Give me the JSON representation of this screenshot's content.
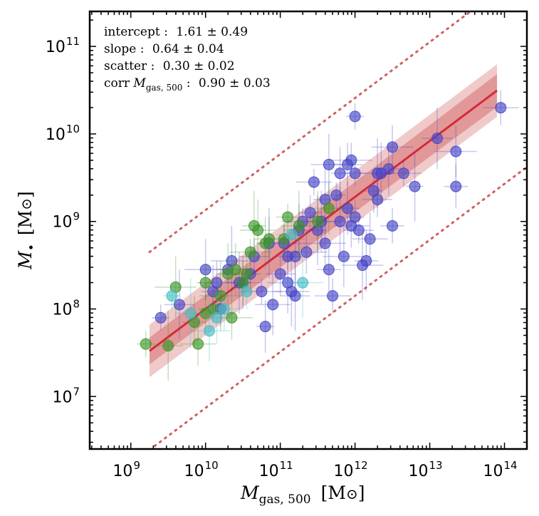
{
  "chart_data": {
    "type": "scatter",
    "log_axes": true,
    "xlim_exp": [
      8.45,
      14.3
    ],
    "ylim_exp": [
      6.4,
      11.4
    ],
    "xtick_exponents": [
      9,
      10,
      11,
      12,
      13,
      14
    ],
    "ytick_exponents": [
      7,
      8,
      9,
      10,
      11
    ],
    "tick_base": "10",
    "xlabel": {
      "sym": "M",
      "sub": "gas, 500",
      "unit": "[M",
      "unit_end": "]"
    },
    "ylabel": {
      "sym": "M",
      "bullet": "•",
      "unit": "[M",
      "unit_end": "]"
    },
    "annotations": [
      {
        "label": "intercept :",
        "value": "1.61 ± 0.49"
      },
      {
        "label": "slope :",
        "value": "0.64 ± 0.04"
      },
      {
        "label": "scatter :",
        "value": "0.30 ± 0.02"
      },
      {
        "label": "corr ",
        "sym": "M",
        "sub": "gas, 500",
        "tail": " :",
        "value": "0.90 ± 0.03"
      }
    ],
    "fit": {
      "x_range_exp": [
        9.25,
        13.9
      ],
      "intercept": 1.61,
      "slope": 0.64,
      "scatter": 0.3,
      "x_pivot_exp": 10.0
    },
    "series": [
      {
        "name": "purple",
        "color": "#4646c8",
        "points": [
          [
            9.4,
            7.9
          ],
          [
            9.65,
            8.05
          ],
          [
            10.0,
            8.45
          ],
          [
            10.1,
            8.2
          ],
          [
            10.15,
            8.3
          ],
          [
            10.2,
            8.0
          ],
          [
            10.3,
            8.45
          ],
          [
            10.35,
            8.55
          ],
          [
            10.45,
            8.3
          ],
          [
            10.5,
            8.3
          ],
          [
            10.6,
            8.4
          ],
          [
            10.65,
            8.6
          ],
          [
            10.75,
            8.2
          ],
          [
            10.85,
            8.75
          ],
          [
            10.9,
            8.05
          ],
          [
            10.8,
            7.8
          ],
          [
            11.0,
            8.4
          ],
          [
            11.05,
            8.75
          ],
          [
            11.1,
            8.6
          ],
          [
            11.15,
            8.2
          ],
          [
            11.2,
            8.6
          ],
          [
            11.25,
            8.9
          ],
          [
            11.35,
            8.65
          ],
          [
            11.4,
            9.1
          ],
          [
            11.45,
            9.45
          ],
          [
            11.5,
            8.9
          ],
          [
            11.55,
            9.0
          ],
          [
            11.6,
            8.75
          ],
          [
            11.65,
            8.45
          ],
          [
            11.7,
            8.15
          ],
          [
            11.75,
            9.3
          ],
          [
            11.8,
            9.0
          ],
          [
            11.85,
            8.6
          ],
          [
            11.9,
            9.15
          ],
          [
            11.95,
            8.95
          ],
          [
            12.0,
            9.05
          ],
          [
            12.05,
            8.9
          ],
          [
            12.1,
            8.5
          ],
          [
            12.15,
            8.55
          ],
          [
            12.2,
            8.8
          ],
          [
            12.25,
            9.35
          ],
          [
            12.3,
            9.25
          ],
          [
            11.3,
            9.0
          ],
          [
            11.6,
            9.25
          ],
          [
            11.65,
            9.65
          ],
          [
            11.8,
            9.55
          ],
          [
            11.9,
            9.65
          ],
          [
            11.95,
            9.7
          ],
          [
            12.0,
            9.55
          ],
          [
            12.3,
            9.55
          ],
          [
            12.35,
            9.55
          ],
          [
            12.45,
            9.6
          ],
          [
            12.5,
            9.85
          ],
          [
            12.5,
            8.95
          ],
          [
            12.65,
            9.55
          ],
          [
            12.8,
            9.4
          ],
          [
            13.1,
            9.95
          ],
          [
            13.35,
            9.8
          ],
          [
            13.35,
            9.4
          ],
          [
            13.95,
            10.3
          ],
          [
            12.0,
            10.2
          ],
          [
            11.2,
            8.15
          ],
          [
            11.1,
            8.3
          ]
        ]
      },
      {
        "name": "green",
        "color": "#3c9628",
        "points": [
          [
            9.2,
            7.6
          ],
          [
            9.5,
            7.58
          ],
          [
            9.6,
            8.25
          ],
          [
            9.85,
            7.85
          ],
          [
            9.9,
            7.6
          ],
          [
            10.0,
            8.3
          ],
          [
            10.1,
            8.0
          ],
          [
            10.2,
            8.15
          ],
          [
            10.3,
            8.4
          ],
          [
            10.4,
            8.45
          ],
          [
            10.5,
            8.3
          ],
          [
            10.55,
            8.4
          ],
          [
            10.6,
            8.65
          ],
          [
            10.65,
            8.95
          ],
          [
            10.7,
            8.9
          ],
          [
            10.8,
            8.75
          ],
          [
            10.85,
            8.8
          ],
          [
            11.05,
            8.8
          ],
          [
            11.1,
            9.05
          ],
          [
            11.25,
            8.95
          ],
          [
            11.5,
            9.0
          ],
          [
            11.65,
            9.15
          ],
          [
            10.35,
            7.9
          ],
          [
            10.0,
            7.95
          ]
        ]
      },
      {
        "name": "cyan",
        "color": "#46bec8",
        "points": [
          [
            9.55,
            8.15
          ],
          [
            9.8,
            7.95
          ],
          [
            10.05,
            7.75
          ],
          [
            10.15,
            7.9
          ],
          [
            10.25,
            8.0
          ],
          [
            10.55,
            8.2
          ],
          [
            11.15,
            8.85
          ],
          [
            11.3,
            8.3
          ]
        ]
      }
    ]
  }
}
